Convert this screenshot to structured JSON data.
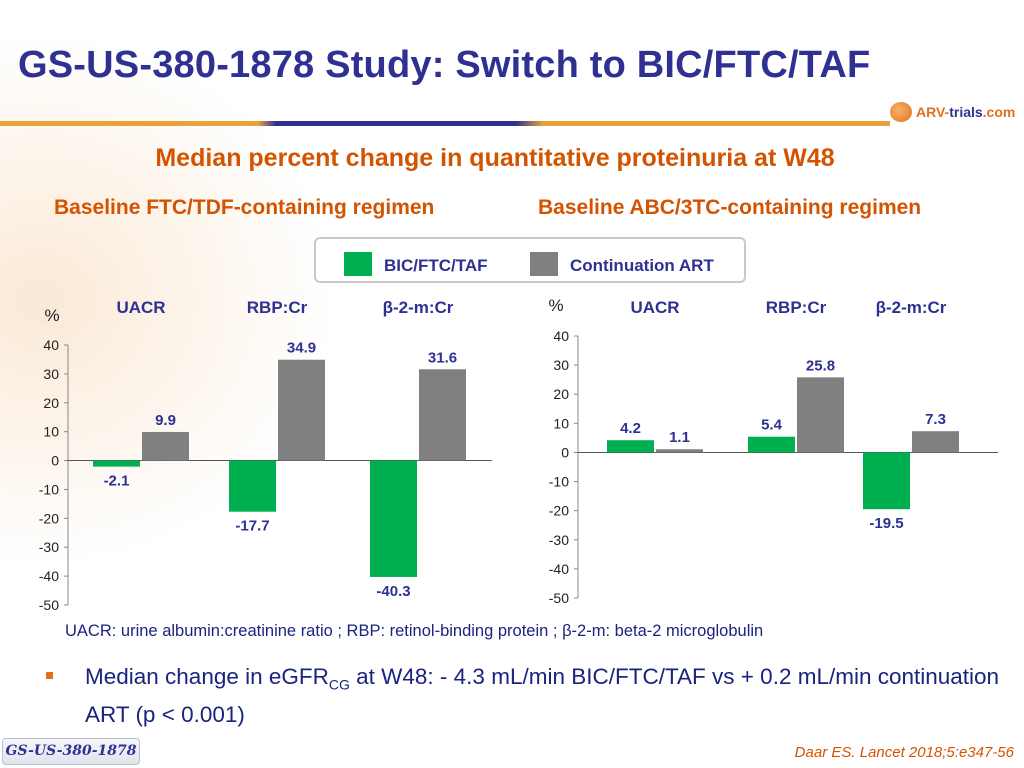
{
  "header": {
    "title": "GS-US-380-1878 Study: Switch to BIC/FTC/TAF",
    "logo_text_a": "ARV-",
    "logo_text_b": "trials",
    "logo_text_c": ".com"
  },
  "subtitle": "Median percent change in quantitative proteinuria at W48",
  "panels": {
    "left_title": "Baseline FTC/TDF-containing regimen",
    "right_title": "Baseline ABC/3TC-containing regimen"
  },
  "legend": {
    "items": [
      {
        "label": "BIC/FTC/TAF",
        "color": "#00b050"
      },
      {
        "label": "Continuation ART",
        "color": "#808080"
      }
    ]
  },
  "chart_data": [
    {
      "type": "bar",
      "title": "Baseline FTC/TDF-containing regimen",
      "ylabel": "%",
      "ylim": [
        -50,
        40
      ],
      "yticks": [
        40,
        30,
        20,
        10,
        0,
        -10,
        -20,
        -30,
        -40,
        -50
      ],
      "categories": [
        "UACR",
        "RBP:Cr",
        "β-2-m:Cr"
      ],
      "series": [
        {
          "name": "BIC/FTC/TAF",
          "color": "#00b050",
          "values": [
            -2.1,
            -17.7,
            -40.3
          ],
          "labels": [
            "-2.1",
            "-17.7",
            "-40.3"
          ]
        },
        {
          "name": "Continuation ART",
          "color": "#808080",
          "values": [
            9.9,
            34.9,
            31.6
          ],
          "labels": [
            "9.9",
            "34.9",
            "31.6"
          ]
        }
      ]
    },
    {
      "type": "bar",
      "title": "Baseline ABC/3TC-containing regimen",
      "ylabel": "%",
      "ylim": [
        -50,
        40
      ],
      "yticks": [
        40,
        30,
        20,
        10,
        0,
        -10,
        -20,
        -30,
        -40,
        -50
      ],
      "categories": [
        "UACR",
        "RBP:Cr",
        "β-2-m:Cr"
      ],
      "series": [
        {
          "name": "BIC/FTC/TAF",
          "color": "#00b050",
          "values": [
            4.2,
            5.4,
            -19.5
          ],
          "labels": [
            "4.2",
            "5.4",
            "-19.5"
          ]
        },
        {
          "name": "Continuation ART",
          "color": "#808080",
          "values": [
            1.1,
            25.8,
            7.3
          ],
          "labels": [
            "1.1",
            "25.8",
            "7.3"
          ]
        }
      ]
    }
  ],
  "footnote": "UACR: urine albumin:creatinine ratio ; RBP: retinol-binding protein ;  β-2-m: beta-2 microglobulin",
  "bullet": {
    "text_a": "Median change in eGFR",
    "sub": "CG",
    "text_b": " at W48: - 4.3 mL/min BIC/FTC/TAF vs + 0.2 mL/min continuation ART (p < 0.001)"
  },
  "study_tag": "GS-US-380-1878",
  "citation": "Daar ES. Lancet 2018;5:e347-56"
}
